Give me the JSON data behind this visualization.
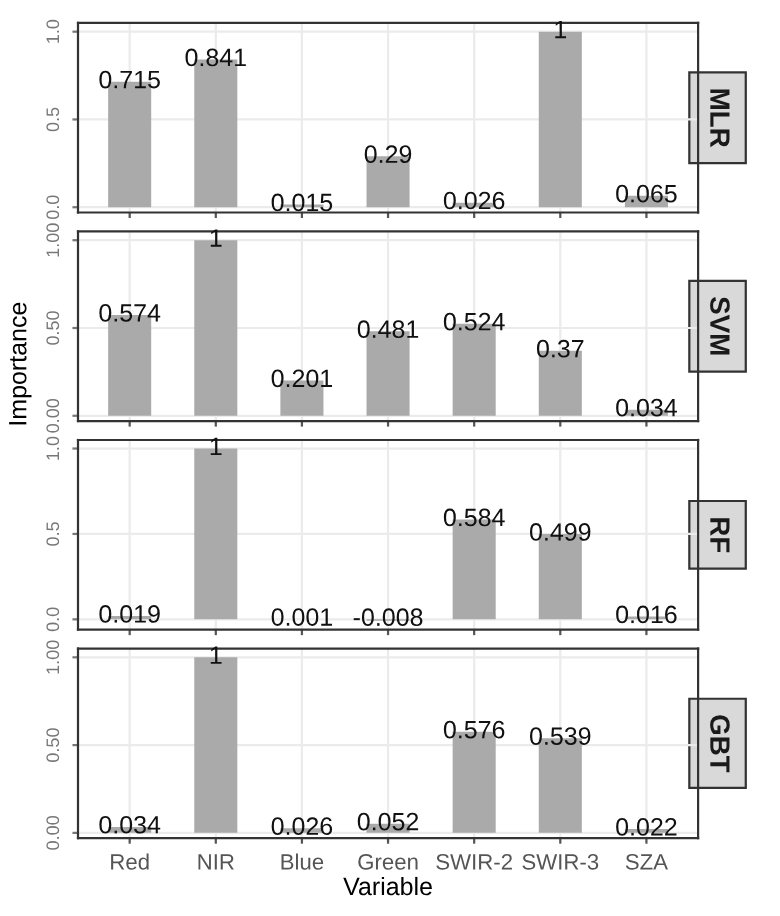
{
  "chart_data": [
    {
      "type": "bar",
      "title": "MLR",
      "values": [
        0.715,
        0.841,
        0.015,
        0.29,
        0.026,
        1,
        0.065
      ],
      "color": "#aaaaaa",
      "data_labels": true,
      "ylim": [
        -0.03,
        1.05
      ],
      "yticks": [
        {
          "value": 0,
          "label": "0.0"
        },
        0.5,
        {
          "value": 1,
          "label": "1.0"
        }
      ],
      "grid": true,
      "tick_labels": "y"
    },
    {
      "type": "bar",
      "title": "SVM",
      "ylabel": "Importance",
      "values": [
        0.574,
        1,
        0.201,
        0.481,
        0.524,
        0.37,
        0.034
      ],
      "color": "#aaaaaa",
      "data_labels": true,
      "ylim": [
        -0.03,
        1.05
      ],
      "yticks": [
        {
          "value": 0,
          "label": "0.00"
        },
        {
          "value": 0.5,
          "label": "0.50"
        },
        {
          "value": 1,
          "label": "1.00"
        }
      ],
      "grid": true,
      "tick_labels": "y"
    },
    {
      "type": "bar",
      "title": "RF",
      "values": [
        0.019,
        1,
        0.001,
        -0.008,
        0.584,
        0.499,
        0.016
      ],
      "color": "#aaaaaa",
      "data_labels": true,
      "ylim": [
        -0.06,
        1.05
      ],
      "yticks": [
        {
          "value": 0,
          "label": "0.0"
        },
        0.5,
        {
          "value": 1,
          "label": "1.0"
        }
      ],
      "grid": true,
      "tick_labels": "y"
    },
    {
      "type": "bar",
      "title": "GBT",
      "xlabel": "Variable",
      "categories": [
        "Red",
        "NIR",
        "Blue",
        "Green",
        "SWIR-2",
        "SWIR-3",
        "SZA"
      ],
      "values": [
        0.034,
        1,
        0.026,
        0.052,
        0.576,
        0.539,
        0.022
      ],
      "color": "#aaaaaa",
      "data_labels": true,
      "ylim": [
        -0.03,
        1.05
      ],
      "yticks": [
        {
          "value": 0,
          "label": "0.00"
        },
        {
          "value": 0.5,
          "label": "0.50"
        },
        {
          "value": 1,
          "label": "1.00"
        }
      ],
      "grid": true
    }
  ]
}
